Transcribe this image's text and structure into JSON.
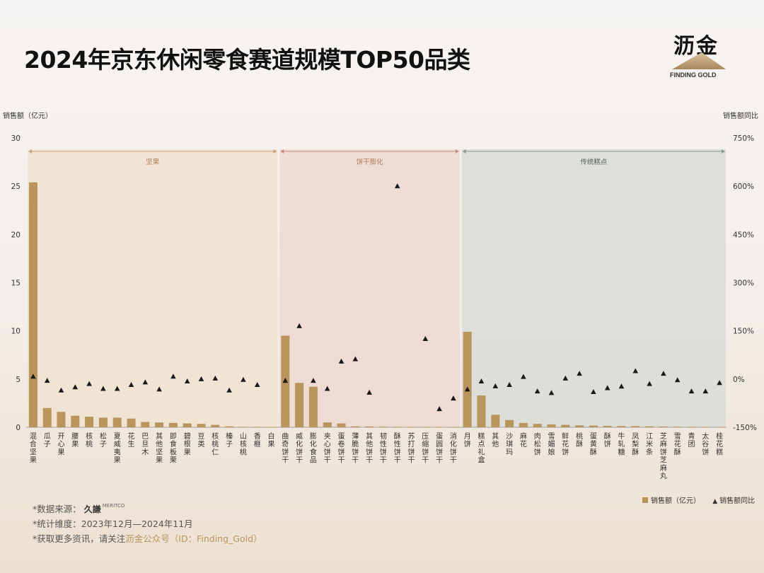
{
  "title": "2024年京东休闲零食赛道规模TOP50品类",
  "logo": {
    "name": "沥金",
    "sub": "FINDING GOLD"
  },
  "footer": {
    "source_label": "*数据来源：",
    "source_logo": "久謙",
    "source_logo_en": "MERITCO",
    "period": "*统计维度：2023年12月—2024年11月",
    "follow_prefix": "*获取更多资讯，请关注",
    "follow_highlight": "沥金公众号（ID：Finding_Gold）"
  },
  "legend": {
    "bar": "销售额（亿元）",
    "marker": "销售额同比"
  },
  "colors": {
    "bar": "#b9955d",
    "marker": "#1a1a1a",
    "group1": "#f2e3d1",
    "group2": "#edd8d0",
    "group3": "#d9dcd6"
  },
  "chart_data": {
    "type": "bar",
    "title": "2024年京东休闲零食赛道规模TOP50品类",
    "ylabel": "销售额（亿元）",
    "y2label": "销售额同比",
    "ylim": [
      0,
      30
    ],
    "y2lim": [
      -150,
      750
    ],
    "y_ticks": [
      "0",
      "5",
      "10",
      "15",
      "20",
      "25",
      "30"
    ],
    "y2_ticks": [
      "-150%",
      "0%",
      "150%",
      "300%",
      "450%",
      "600%",
      "750%"
    ],
    "groups": [
      {
        "name": "坚果",
        "start": 0,
        "end": 17
      },
      {
        "name": "饼干膨化",
        "start": 18,
        "end": 30
      },
      {
        "name": "传统糕点",
        "start": 31,
        "end": 49
      }
    ],
    "categories": [
      "混合坚果",
      "瓜子",
      "开心果",
      "腰果",
      "核桃",
      "松子",
      "夏威夷果",
      "花生",
      "巴旦木",
      "其他坚果",
      "即食板栗",
      "碧根果",
      "豆类",
      "核桃仁",
      "榛子",
      "山核桃",
      "香榧",
      "白果",
      "曲奇饼干",
      "威化饼干",
      "膨化食品",
      "夹心饼干",
      "蛋卷饼干",
      "薄脆饼干",
      "其他饼干",
      "韧性饼干",
      "酥性饼干",
      "苏打饼干",
      "压缩饼干",
      "蛋圆饼干",
      "消化饼干",
      "月饼",
      "糕点礼盒",
      "其他",
      "沙琪玛",
      "麻花",
      "肉松饼",
      "雪媚娘",
      "鲜花饼",
      "桃酥",
      "蛋黄酥",
      "酥饼",
      "牛轧糖",
      "凤梨酥",
      "江米条",
      "芝麻饼芝麻丸",
      "雪花酥",
      "青团",
      "太谷饼",
      "桂花糕"
    ],
    "category_lines": [
      [
        "混",
        "合",
        "坚",
        "果"
      ],
      [
        "瓜",
        "子"
      ],
      [
        "开",
        "心",
        "果"
      ],
      [
        "腰",
        "果"
      ],
      [
        "核",
        "桃"
      ],
      [
        "松",
        "子"
      ],
      [
        "夏",
        "威",
        "夷",
        "果"
      ],
      [
        "花",
        "生"
      ],
      [
        "巴",
        "旦",
        "木"
      ],
      [
        "其",
        "他",
        "坚",
        "果"
      ],
      [
        "即",
        "食",
        "板",
        "栗"
      ],
      [
        "碧",
        "根",
        "果"
      ],
      [
        "豆",
        "类"
      ],
      [
        "核",
        "桃",
        "仁"
      ],
      [
        "榛",
        "子"
      ],
      [
        "山",
        "核",
        "桃"
      ],
      [
        "香",
        "榧"
      ],
      [
        "白",
        "果"
      ],
      [
        "曲",
        "奇",
        "饼",
        "干"
      ],
      [
        "威",
        "化",
        "饼",
        "干"
      ],
      [
        "膨",
        "化",
        "食",
        "品"
      ],
      [
        "夹",
        "心",
        "饼",
        "干"
      ],
      [
        "蛋",
        "卷",
        "饼",
        "干"
      ],
      [
        "薄",
        "脆",
        "饼",
        "干"
      ],
      [
        "其",
        "他",
        "饼",
        "干"
      ],
      [
        "韧",
        "性",
        "饼",
        "干"
      ],
      [
        "酥",
        "性",
        "饼",
        "干"
      ],
      [
        "苏",
        "打",
        "饼",
        "干"
      ],
      [
        "压",
        "缩",
        "饼",
        "干"
      ],
      [
        "蛋",
        "圆",
        "饼",
        "干"
      ],
      [
        "消",
        "化",
        "饼",
        "干"
      ],
      [
        "月",
        "饼"
      ],
      [
        "糕",
        "点",
        "礼",
        "盒"
      ],
      [
        "其",
        "他"
      ],
      [
        "沙",
        "琪",
        "玛"
      ],
      [
        "麻",
        "花"
      ],
      [
        "肉",
        "松",
        "饼"
      ],
      [
        "雪",
        "媚",
        "娘"
      ],
      [
        "鲜",
        "花",
        "饼"
      ],
      [
        "桃",
        "酥"
      ],
      [
        "蛋",
        "黄",
        "酥"
      ],
      [
        "酥",
        "饼"
      ],
      [
        "牛",
        "轧",
        "糖"
      ],
      [
        "凤",
        "梨",
        "酥"
      ],
      [
        "江",
        "米",
        "条"
      ],
      [
        "芝",
        "麻",
        "饼",
        "芝",
        "麻",
        "丸"
      ],
      [
        "雪",
        "花",
        "酥"
      ],
      [
        "青",
        "团"
      ],
      [
        "太",
        "谷",
        "饼"
      ],
      [
        "桂",
        "花",
        "糕"
      ]
    ],
    "series": [
      {
        "name": "销售额（亿元）",
        "type": "bar",
        "values": [
          25.4,
          2.0,
          1.6,
          1.2,
          1.1,
          1.0,
          1.0,
          0.9,
          0.55,
          0.5,
          0.45,
          0.4,
          0.35,
          0.25,
          0.1,
          0.05,
          0.05,
          0.03,
          9.5,
          4.6,
          4.2,
          0.5,
          0.4,
          0.1,
          0.08,
          0.06,
          0.05,
          0.04,
          0.03,
          0.03,
          0.02,
          9.9,
          3.3,
          1.3,
          0.75,
          0.45,
          0.35,
          0.3,
          0.25,
          0.2,
          0.18,
          0.15,
          0.13,
          0.12,
          0.1,
          0.08,
          0.06,
          0.05,
          0.04,
          0.03
        ]
      },
      {
        "name": "销售额同比",
        "type": "scatter",
        "values": [
          8,
          -5,
          -35,
          -25,
          -15,
          -30,
          -30,
          -18,
          -10,
          -32,
          8,
          -7,
          0,
          2,
          -35,
          -2,
          -18,
          null,
          -5,
          165,
          -5,
          -30,
          55,
          62,
          -42,
          null,
          600,
          null,
          125,
          -93,
          -60,
          -32,
          -7,
          -22,
          -18,
          7,
          -38,
          -43,
          2,
          17,
          -40,
          -28,
          -23,
          25,
          -15,
          17,
          -3,
          -38,
          -38,
          -12
        ]
      }
    ],
    "grid": false,
    "legend_position": "bottom-right"
  }
}
